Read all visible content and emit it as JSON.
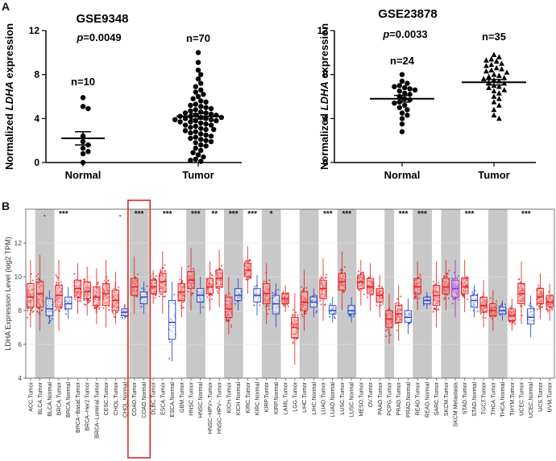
{
  "panel_a_label": "A",
  "panel_b_label": "B",
  "colors": {
    "tumor": "#e41a1c",
    "normal": "#1f3fd1",
    "metastasis": "#9b30d0",
    "highlight": "#d62728",
    "shade": "#c8c8c8"
  },
  "chart_data": [
    {
      "type": "scatter",
      "title": "GSE9348",
      "ylabel_prefix": "Normalized ",
      "ylabel_gene": "LDHA",
      "ylabel_suffix": " expression",
      "ylim": [
        0,
        12
      ],
      "yticks": [
        "0",
        "4",
        "8",
        "12"
      ],
      "pvalue_label": "p",
      "pvalue_text": "=0.0049",
      "groups": [
        {
          "name": "Normal",
          "n_label": "n=10",
          "marker": "circle",
          "mean": 2.2,
          "sem": 0.6,
          "values": [
            5.9,
            5.1,
            4.9,
            2.4,
            1.9,
            1.6,
            1.3,
            1.0,
            0.8,
            0.0
          ]
        },
        {
          "name": "Tumor",
          "n_label": "n=70",
          "marker": "circle",
          "mean": 4.2,
          "sem": 0.25,
          "values": [
            10.0,
            9.1,
            8.4,
            8.0,
            7.6,
            7.2,
            6.9,
            6.6,
            6.4,
            6.2,
            6.0,
            5.8,
            5.6,
            5.5,
            5.3,
            5.2,
            5.1,
            5.0,
            4.9,
            4.8,
            4.7,
            4.6,
            4.5,
            4.5,
            4.4,
            4.3,
            4.3,
            4.2,
            4.2,
            4.1,
            4.1,
            4.0,
            4.0,
            3.9,
            3.9,
            3.8,
            3.8,
            3.7,
            3.7,
            3.6,
            3.5,
            3.4,
            3.4,
            3.3,
            3.2,
            3.1,
            3.0,
            3.0,
            2.9,
            2.8,
            2.7,
            2.6,
            2.5,
            2.4,
            2.3,
            2.2,
            2.1,
            2.0,
            1.9,
            1.8,
            1.6,
            1.5,
            1.3,
            1.1,
            0.9,
            0.7,
            0.5,
            0.3,
            0.2,
            0.1
          ]
        }
      ]
    },
    {
      "type": "scatter",
      "title": "GSE23878",
      "ylabel_prefix": "Normalized ",
      "ylabel_gene": "LDHA",
      "ylabel_suffix": " expression",
      "ylim": [
        0,
        12
      ],
      "yticks": [
        "0",
        "4",
        "8",
        "12"
      ],
      "pvalue_label": "p",
      "pvalue_text": "=0.0033",
      "groups": [
        {
          "name": "Normal",
          "n_label": "n=24",
          "marker": "circle",
          "mean": 5.8,
          "sem": 0.3,
          "values": [
            8.0,
            7.4,
            7.2,
            7.0,
            6.9,
            6.8,
            6.7,
            6.6,
            6.5,
            6.3,
            6.2,
            6.0,
            5.8,
            5.7,
            5.5,
            5.4,
            5.2,
            5.0,
            4.8,
            4.5,
            4.3,
            4.0,
            3.5,
            2.8
          ]
        },
        {
          "name": "Tumor",
          "n_label": "n=35",
          "marker": "triangle",
          "mean": 7.3,
          "sem": 0.25,
          "values": [
            9.8,
            9.6,
            9.4,
            9.3,
            9.2,
            9.0,
            8.9,
            8.8,
            8.6,
            8.5,
            8.4,
            8.3,
            8.2,
            8.0,
            7.9,
            7.8,
            7.7,
            7.6,
            7.5,
            7.4,
            7.3,
            7.2,
            7.0,
            6.9,
            6.8,
            6.6,
            6.5,
            6.3,
            6.0,
            5.8,
            5.5,
            5.2,
            4.8,
            4.3,
            4.0
          ]
        }
      ]
    },
    {
      "type": "box",
      "ylabel": "LDHA Expression Level (log2 TPM)",
      "ylim": [
        4,
        14
      ],
      "yticks": [
        "4",
        "6",
        "8",
        "10",
        "12"
      ],
      "highlight_label": "COAD.Normal",
      "categories": [
        {
          "label": "ACC.Tumor",
          "kind": "tumor",
          "shade": false,
          "sig": "",
          "q1": 8.2,
          "med": 8.8,
          "q3": 9.6,
          "lo": 7.0,
          "hi": 11.0
        },
        {
          "label": "BLCA.Tumor",
          "kind": "tumor",
          "shade": true,
          "sig": ".",
          "q1": 8.2,
          "med": 9.0,
          "q3": 9.7,
          "lo": 6.8,
          "hi": 11.3
        },
        {
          "label": "BLCA.Normal",
          "kind": "normal",
          "shade": true,
          "sig": "",
          "q1": 7.7,
          "med": 8.1,
          "q3": 8.7,
          "lo": 7.2,
          "hi": 9.2
        },
        {
          "label": "BRCA.Tumor",
          "kind": "tumor",
          "shade": false,
          "sig": "***",
          "q1": 8.2,
          "med": 8.9,
          "q3": 9.5,
          "lo": 6.8,
          "hi": 11.0
        },
        {
          "label": "BRCA.Normal",
          "kind": "normal",
          "shade": false,
          "sig": "",
          "q1": 8.1,
          "med": 8.4,
          "q3": 8.8,
          "lo": 7.5,
          "hi": 9.4
        },
        {
          "label": "BRCA−Basal.Tumor",
          "kind": "tumor",
          "shade": false,
          "sig": "",
          "q1": 8.8,
          "med": 9.3,
          "q3": 9.8,
          "lo": 7.8,
          "hi": 10.8
        },
        {
          "label": "BRCA−Her2.Tumor",
          "kind": "tumor",
          "shade": false,
          "sig": "",
          "q1": 8.7,
          "med": 9.1,
          "q3": 9.7,
          "lo": 7.7,
          "hi": 10.6
        },
        {
          "label": "BRCA−Luminal.Tumor",
          "kind": "tumor",
          "shade": false,
          "sig": "",
          "q1": 8.3,
          "med": 8.8,
          "q3": 9.4,
          "lo": 7.2,
          "hi": 10.5
        },
        {
          "label": "CESC.Tumor",
          "kind": "tumor",
          "shade": false,
          "sig": "",
          "q1": 8.3,
          "med": 9.0,
          "q3": 9.6,
          "lo": 7.0,
          "hi": 11.0
        },
        {
          "label": "CHOL.Tumor",
          "kind": "tumor",
          "shade": false,
          "sig": ".",
          "q1": 8.0,
          "med": 8.6,
          "q3": 9.2,
          "lo": 7.2,
          "hi": 10.3
        },
        {
          "label": "CHOL.Normal",
          "kind": "normal",
          "shade": false,
          "sig": "",
          "q1": 7.7,
          "med": 7.9,
          "q3": 8.1,
          "lo": 7.5,
          "hi": 8.4
        },
        {
          "label": "COAD.Tumor",
          "kind": "tumor",
          "shade": true,
          "sig": "***",
          "q1": 8.9,
          "med": 9.4,
          "q3": 9.9,
          "lo": 7.8,
          "hi": 11.2
        },
        {
          "label": "COAD.Normal",
          "kind": "normal",
          "shade": true,
          "sig": "",
          "q1": 8.4,
          "med": 8.8,
          "q3": 9.1,
          "lo": 7.8,
          "hi": 9.7
        },
        {
          "label": "DLBC.Tumor",
          "kind": "tumor",
          "shade": false,
          "sig": "",
          "q1": 9.0,
          "med": 9.4,
          "q3": 9.8,
          "lo": 8.4,
          "hi": 10.4
        },
        {
          "label": "ESCA.Tumor",
          "kind": "tumor",
          "shade": false,
          "sig": "***",
          "q1": 9.1,
          "med": 9.7,
          "q3": 10.2,
          "lo": 7.8,
          "hi": 11.5
        },
        {
          "label": "ESCA.Normal",
          "kind": "normal",
          "shade": false,
          "sig": "",
          "q1": 6.3,
          "med": 7.3,
          "q3": 8.6,
          "lo": 5.0,
          "hi": 9.7
        },
        {
          "label": "GBM.Tumor",
          "kind": "tumor",
          "shade": false,
          "sig": "",
          "q1": 8.6,
          "med": 9.1,
          "q3": 9.6,
          "lo": 7.6,
          "hi": 10.6
        },
        {
          "label": "HNSC.Tumor",
          "kind": "tumor",
          "shade": true,
          "sig": "***",
          "q1": 9.3,
          "med": 9.8,
          "q3": 10.3,
          "lo": 8.0,
          "hi": 11.7
        },
        {
          "label": "HNSC.Normal",
          "kind": "normal",
          "shade": true,
          "sig": "",
          "q1": 8.5,
          "med": 8.9,
          "q3": 9.3,
          "lo": 7.8,
          "hi": 10.0
        },
        {
          "label": "HNSC−HPV+.Tumor",
          "kind": "tumor",
          "shade": false,
          "sig": "**",
          "q1": 9.0,
          "med": 9.4,
          "q3": 9.9,
          "lo": 8.0,
          "hi": 10.9
        },
        {
          "label": "HNSC−HPV−.Tumor",
          "kind": "tumor",
          "shade": false,
          "sig": "",
          "q1": 9.4,
          "med": 9.9,
          "q3": 10.4,
          "lo": 8.2,
          "hi": 11.6
        },
        {
          "label": "KICH.Tumor",
          "kind": "tumor",
          "shade": true,
          "sig": "***",
          "q1": 7.6,
          "med": 8.1,
          "q3": 8.8,
          "lo": 6.6,
          "hi": 10.0
        },
        {
          "label": "KICH.Normal",
          "kind": "normal",
          "shade": true,
          "sig": "",
          "q1": 8.6,
          "med": 8.9,
          "q3": 9.3,
          "lo": 8.0,
          "hi": 9.9
        },
        {
          "label": "KIRC.Tumor",
          "kind": "tumor",
          "shade": false,
          "sig": "***",
          "q1": 10.0,
          "med": 10.4,
          "q3": 10.8,
          "lo": 9.0,
          "hi": 11.8
        },
        {
          "label": "KIRC.Normal",
          "kind": "normal",
          "shade": false,
          "sig": "",
          "q1": 8.5,
          "med": 8.9,
          "q3": 9.3,
          "lo": 7.7,
          "hi": 10.1
        },
        {
          "label": "KIRP.Tumor",
          "kind": "tumor",
          "shade": true,
          "sig": "*",
          "q1": 8.4,
          "med": 9.0,
          "q3": 9.6,
          "lo": 7.2,
          "hi": 10.8
        },
        {
          "label": "KIRP.Normal",
          "kind": "normal",
          "shade": true,
          "sig": "",
          "q1": 7.8,
          "med": 8.4,
          "q3": 8.9,
          "lo": 7.0,
          "hi": 9.6
        },
        {
          "label": "LAML.Tumor",
          "kind": "tumor",
          "shade": false,
          "sig": "",
          "q1": 8.4,
          "med": 8.7,
          "q3": 9.0,
          "lo": 7.9,
          "hi": 9.5
        },
        {
          "label": "LGG.Tumor",
          "kind": "tumor",
          "shade": false,
          "sig": "",
          "q1": 6.4,
          "med": 7.0,
          "q3": 7.6,
          "lo": 4.8,
          "hi": 9.0
        },
        {
          "label": "LIHC.Tumor",
          "kind": "tumor",
          "shade": true,
          "sig": "",
          "q1": 8.0,
          "med": 8.5,
          "q3": 9.1,
          "lo": 6.8,
          "hi": 10.4
        },
        {
          "label": "LIHC.Normal",
          "kind": "normal",
          "shade": true,
          "sig": "",
          "q1": 8.2,
          "med": 8.5,
          "q3": 8.8,
          "lo": 7.6,
          "hi": 9.3
        },
        {
          "label": "LUAD.Tumor",
          "kind": "tumor",
          "shade": false,
          "sig": "***",
          "q1": 8.7,
          "med": 9.3,
          "q3": 9.8,
          "lo": 7.4,
          "hi": 11.1
        },
        {
          "label": "LUAD.Normal",
          "kind": "normal",
          "shade": false,
          "sig": "",
          "q1": 7.8,
          "med": 8.0,
          "q3": 8.3,
          "lo": 7.3,
          "hi": 8.8
        },
        {
          "label": "LUSC.Tumor",
          "kind": "tumor",
          "shade": true,
          "sig": "***",
          "q1": 9.2,
          "med": 9.7,
          "q3": 10.2,
          "lo": 8.0,
          "hi": 11.5
        },
        {
          "label": "LUSC.Normal",
          "kind": "normal",
          "shade": true,
          "sig": "",
          "q1": 7.8,
          "med": 8.0,
          "q3": 8.3,
          "lo": 7.3,
          "hi": 8.8
        },
        {
          "label": "MESO.Tumor",
          "kind": "tumor",
          "shade": false,
          "sig": "",
          "q1": 9.3,
          "med": 9.7,
          "q3": 10.1,
          "lo": 8.3,
          "hi": 11.0
        },
        {
          "label": "OV.Tumor",
          "kind": "tumor",
          "shade": false,
          "sig": "",
          "q1": 9.0,
          "med": 9.4,
          "q3": 9.9,
          "lo": 8.0,
          "hi": 10.8
        },
        {
          "label": "PAAD.Tumor",
          "kind": "tumor",
          "shade": false,
          "sig": "",
          "q1": 8.5,
          "med": 8.9,
          "q3": 9.3,
          "lo": 7.6,
          "hi": 10.1
        },
        {
          "label": "PCPG.Tumor",
          "kind": "tumor",
          "shade": true,
          "sig": "",
          "q1": 7.0,
          "med": 7.5,
          "q3": 8.0,
          "lo": 6.0,
          "hi": 9.0
        },
        {
          "label": "PRAD.Tumor",
          "kind": "tumor",
          "shade": false,
          "sig": "***",
          "q1": 7.3,
          "med": 7.8,
          "q3": 8.3,
          "lo": 6.2,
          "hi": 9.5
        },
        {
          "label": "PRAD.Normal",
          "kind": "normal",
          "shade": false,
          "sig": "",
          "q1": 7.3,
          "med": 7.6,
          "q3": 8.0,
          "lo": 6.6,
          "hi": 8.7
        },
        {
          "label": "READ.Tumor",
          "kind": "tumor",
          "shade": true,
          "sig": "***",
          "q1": 9.0,
          "med": 9.4,
          "q3": 9.9,
          "lo": 8.0,
          "hi": 10.9
        },
        {
          "label": "READ.Normal",
          "kind": "normal",
          "shade": true,
          "sig": "",
          "q1": 8.4,
          "med": 8.6,
          "q3": 8.8,
          "lo": 8.1,
          "hi": 9.1
        },
        {
          "label": "SARC.Tumor",
          "kind": "tumor",
          "shade": false,
          "sig": "",
          "q1": 8.3,
          "med": 8.9,
          "q3": 9.5,
          "lo": 7.0,
          "hi": 10.9
        },
        {
          "label": "SKCM.Tumor",
          "kind": "tumor",
          "shade": true,
          "sig": "",
          "q1": 9.0,
          "med": 9.4,
          "q3": 9.9,
          "lo": 8.0,
          "hi": 11.0
        },
        {
          "label": "SKCM.Metastasis",
          "kind": "metastasis",
          "shade": true,
          "sig": "",
          "q1": 8.8,
          "med": 9.3,
          "q3": 9.8,
          "lo": 7.6,
          "hi": 11.0
        },
        {
          "label": "STAD.Tumor",
          "kind": "tumor",
          "shade": false,
          "sig": "***",
          "q1": 9.0,
          "med": 9.4,
          "q3": 9.9,
          "lo": 7.9,
          "hi": 11.0
        },
        {
          "label": "STAD.Normal",
          "kind": "normal",
          "shade": false,
          "sig": "",
          "q1": 8.2,
          "med": 8.6,
          "q3": 8.9,
          "lo": 7.6,
          "hi": 9.5
        },
        {
          "label": "TGCT.Tumor",
          "kind": "tumor",
          "shade": false,
          "sig": "",
          "q1": 7.9,
          "med": 8.3,
          "q3": 8.8,
          "lo": 7.0,
          "hi": 9.8
        },
        {
          "label": "THCA.Tumor",
          "kind": "tumor",
          "shade": true,
          "sig": "",
          "q1": 7.7,
          "med": 8.0,
          "q3": 8.4,
          "lo": 6.8,
          "hi": 9.2
        },
        {
          "label": "THCA.Normal",
          "kind": "normal",
          "shade": true,
          "sig": "",
          "q1": 7.8,
          "med": 8.0,
          "q3": 8.2,
          "lo": 7.4,
          "hi": 8.6
        },
        {
          "label": "THYM.Tumor",
          "kind": "tumor",
          "shade": false,
          "sig": "",
          "q1": 7.4,
          "med": 7.7,
          "q3": 8.1,
          "lo": 6.8,
          "hi": 8.7
        },
        {
          "label": "UCEC.Tumor",
          "kind": "tumor",
          "shade": false,
          "sig": "***",
          "q1": 8.4,
          "med": 9.0,
          "q3": 9.6,
          "lo": 7.2,
          "hi": 10.9
        },
        {
          "label": "UCEC.Normal",
          "kind": "normal",
          "shade": false,
          "sig": "",
          "q1": 7.2,
          "med": 7.6,
          "q3": 8.1,
          "lo": 6.4,
          "hi": 8.9
        },
        {
          "label": "UCS.Tumor",
          "kind": "tumor",
          "shade": false,
          "sig": "",
          "q1": 8.4,
          "med": 8.8,
          "q3": 9.3,
          "lo": 7.5,
          "hi": 10.2
        },
        {
          "label": "UVM.Tumor",
          "kind": "tumor",
          "shade": false,
          "sig": "",
          "q1": 8.2,
          "med": 8.5,
          "q3": 8.9,
          "lo": 7.4,
          "hi": 9.6
        }
      ]
    }
  ]
}
